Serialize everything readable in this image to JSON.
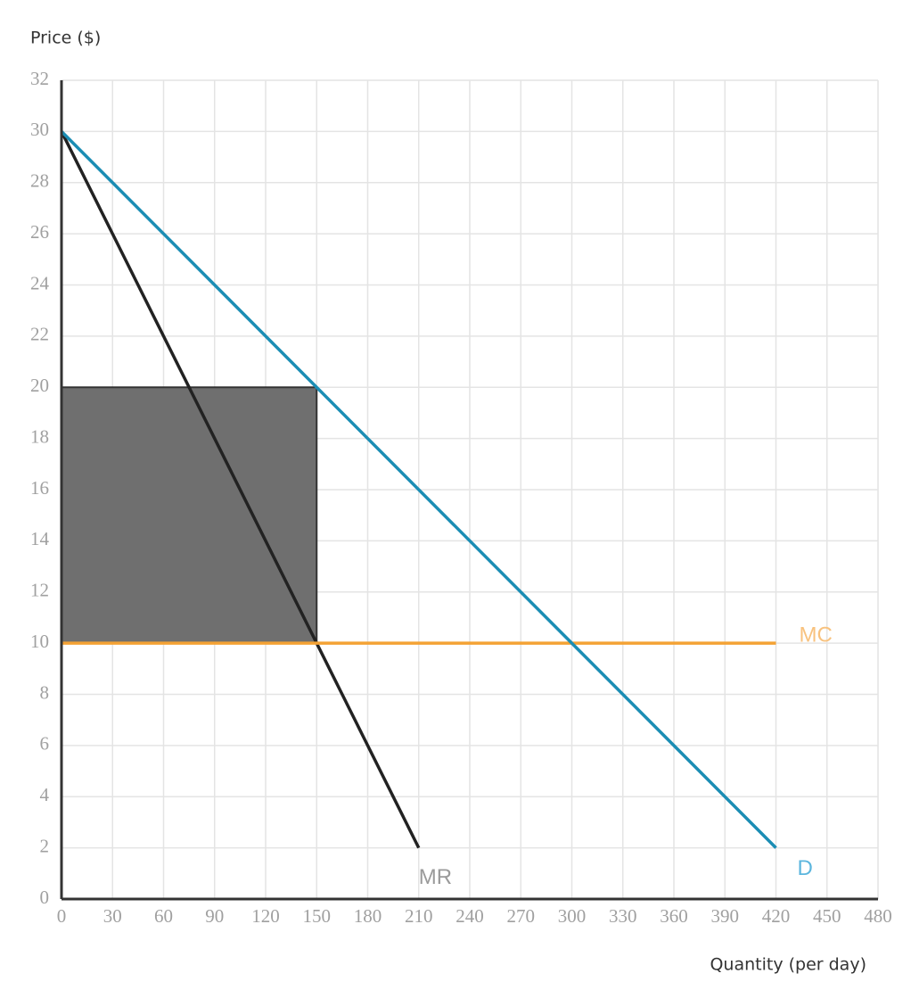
{
  "chart_data": {
    "type": "line",
    "y_label": "Price ($)",
    "x_label": "Quantity (per day)",
    "xlim": [
      0,
      480
    ],
    "ylim": [
      0,
      32
    ],
    "xticks": [
      0,
      30,
      60,
      90,
      120,
      150,
      180,
      210,
      240,
      270,
      300,
      330,
      360,
      390,
      420,
      450,
      480
    ],
    "yticks": [
      0,
      2,
      4,
      6,
      8,
      10,
      12,
      14,
      16,
      18,
      20,
      22,
      24,
      26,
      28,
      30,
      32
    ],
    "grid": true,
    "shaded_region": {
      "x": [
        0,
        150
      ],
      "y": [
        10,
        20
      ],
      "color": "#6f6f6f"
    },
    "series": [
      {
        "name": "MR",
        "color": "#222222",
        "x": [
          0,
          210
        ],
        "values": [
          30,
          2
        ]
      },
      {
        "name": "MC",
        "color": "#f4a234",
        "x": [
          0,
          420
        ],
        "values": [
          10,
          10
        ]
      },
      {
        "name": "D",
        "color": "#1b8db4",
        "x": [
          0,
          420
        ],
        "values": [
          30,
          2
        ]
      }
    ]
  }
}
